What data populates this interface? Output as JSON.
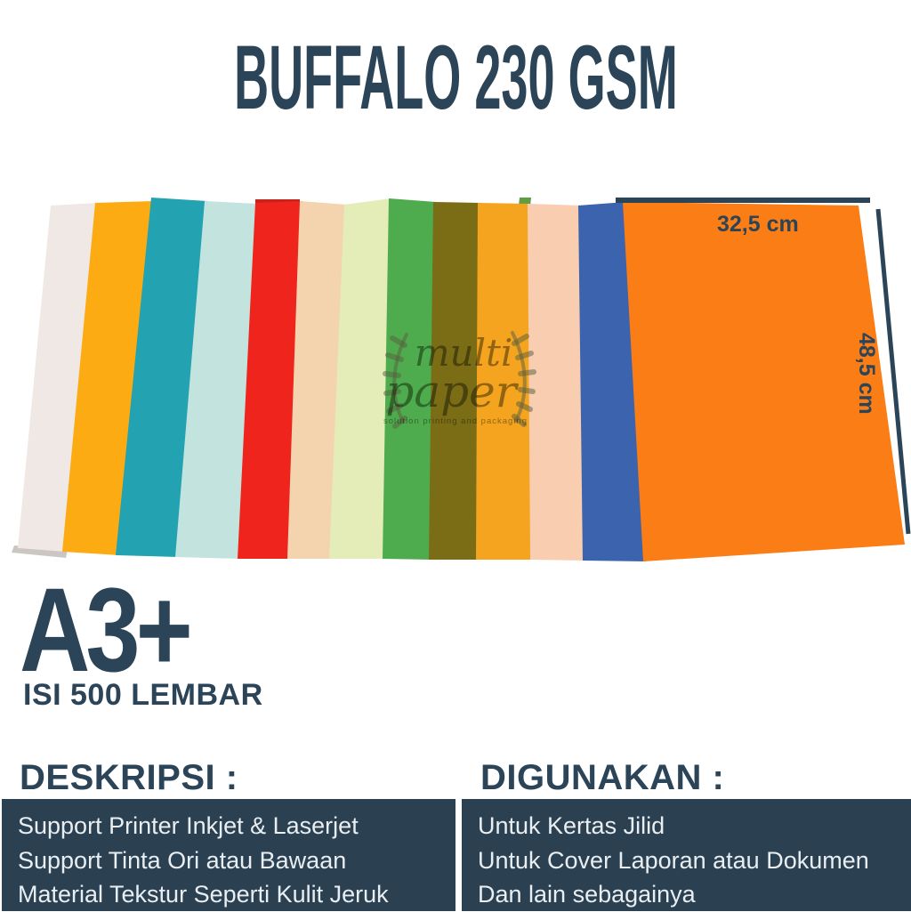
{
  "title": "BUFFALO 230 GSM",
  "measurements": {
    "width_label": "32,5 cm",
    "height_label": "48,5 cm"
  },
  "papers": {
    "colors": [
      {
        "name": "off-white",
        "hex": "#EFE8E4"
      },
      {
        "name": "marigold",
        "hex": "#FCAC12"
      },
      {
        "name": "teal",
        "hex": "#23A2B1"
      },
      {
        "name": "pale-aqua",
        "hex": "#C3E3DF"
      },
      {
        "name": "red",
        "hex": "#EF241C"
      },
      {
        "name": "peach",
        "hex": "#F3D4AF"
      },
      {
        "name": "pale-lime",
        "hex": "#E4ECB8"
      },
      {
        "name": "green",
        "hex": "#4FAC4E"
      },
      {
        "name": "olive",
        "hex": "#7A6D15"
      },
      {
        "name": "golden-amber",
        "hex": "#F5A41F"
      },
      {
        "name": "pale-pink",
        "hex": "#F9CDB0"
      },
      {
        "name": "royal-blue",
        "hex": "#3C63AD"
      },
      {
        "name": "orange",
        "hex": "#FB7D15"
      }
    ],
    "slivers": [
      {
        "name": "red-sheet-edge",
        "hex": "#C8221B"
      },
      {
        "name": "green-sheet-edge",
        "hex": "#5F9E44"
      },
      {
        "name": "stack-edge-shadow",
        "hex": "#CCC6C2"
      }
    ]
  },
  "watermark": {
    "line1": "multi",
    "line2": "paper",
    "tagline": "solution printing and packaging"
  },
  "size": {
    "format": "A3+",
    "count": "ISI 500 LEMBAR"
  },
  "sections": {
    "left": {
      "heading": "DESKRIPSI :",
      "items": [
        "Support Printer Inkjet & Laserjet",
        "Support Tinta Ori atau Bawaan",
        "Material Tekstur Seperti Kulit Jeruk"
      ]
    },
    "right": {
      "heading": "DIGUNAKAN :",
      "items": [
        "Untuk Kertas Jilid",
        "Untuk Cover Laporan atau Dokumen",
        "Dan lain sebagainya"
      ]
    }
  },
  "colors": {
    "navy_text": "#2B4458",
    "panel_bg": "#2B4152",
    "panel_text": "#E9EEF2",
    "background": "#FFFFFF"
  }
}
